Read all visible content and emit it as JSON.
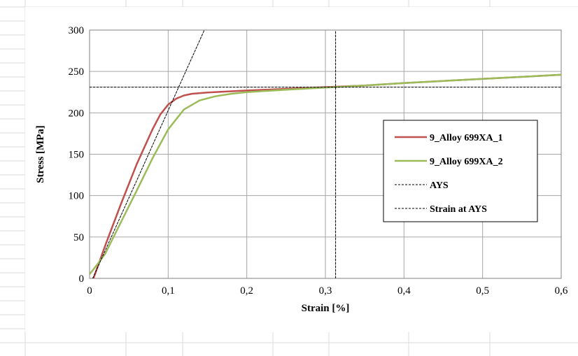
{
  "chart_data": {
    "type": "line",
    "xlabel": "Strain [%]",
    "ylabel": "Stress [MPa]",
    "xlim": [
      0,
      0.6
    ],
    "ylim": [
      0,
      300
    ],
    "x_ticks": [
      0,
      0.1,
      0.2,
      0.3,
      0.4,
      0.5,
      0.6
    ],
    "x_tick_labels": [
      "0",
      "0,1",
      "0,2",
      "0,3",
      "0,4",
      "0,5",
      "0,6"
    ],
    "y_ticks": [
      0,
      50,
      100,
      150,
      200,
      250,
      300
    ],
    "y_tick_labels": [
      "0",
      "50",
      "100",
      "150",
      "200",
      "250",
      "300"
    ],
    "grid": true,
    "legend_position": "right",
    "series": [
      {
        "name": "9_Alloy 699XA_1",
        "color": "#c0504d",
        "style": "solid",
        "x": [
          0.005,
          0.02,
          0.04,
          0.06,
          0.08,
          0.09,
          0.1,
          0.11,
          0.12,
          0.13,
          0.15,
          0.2,
          0.25,
          0.3,
          0.35,
          0.4,
          0.5,
          0.6
        ],
        "y": [
          0,
          40,
          90,
          138,
          180,
          198,
          210,
          217,
          221,
          223,
          224.5,
          227,
          229,
          231,
          233,
          236,
          241,
          246
        ]
      },
      {
        "name": "9_Alloy 699XA_2",
        "color": "#9bbb59",
        "style": "solid",
        "x": [
          0,
          0.01,
          0.02,
          0.04,
          0.06,
          0.08,
          0.1,
          0.12,
          0.14,
          0.16,
          0.18,
          0.2,
          0.25,
          0.3,
          0.35,
          0.4,
          0.5,
          0.6
        ],
        "y": [
          5,
          17,
          30,
          68,
          106,
          145,
          180,
          204,
          215,
          220,
          223,
          225,
          228,
          230.5,
          233,
          236,
          241,
          246
        ]
      },
      {
        "name": "AYS",
        "color": "#000000",
        "style": "dashed",
        "x": [
          0,
          0.6
        ],
        "y": [
          231,
          231
        ]
      },
      {
        "name": "Strain at AYS",
        "color": "#000000",
        "style": "dashed",
        "x": [
          0.313,
          0.313
        ],
        "y": [
          0,
          300
        ]
      },
      {
        "name": "",
        "color": "#000000",
        "style": "dashed",
        "x": [
          0.004,
          0.146
        ],
        "y": [
          0,
          300
        ]
      }
    ]
  }
}
